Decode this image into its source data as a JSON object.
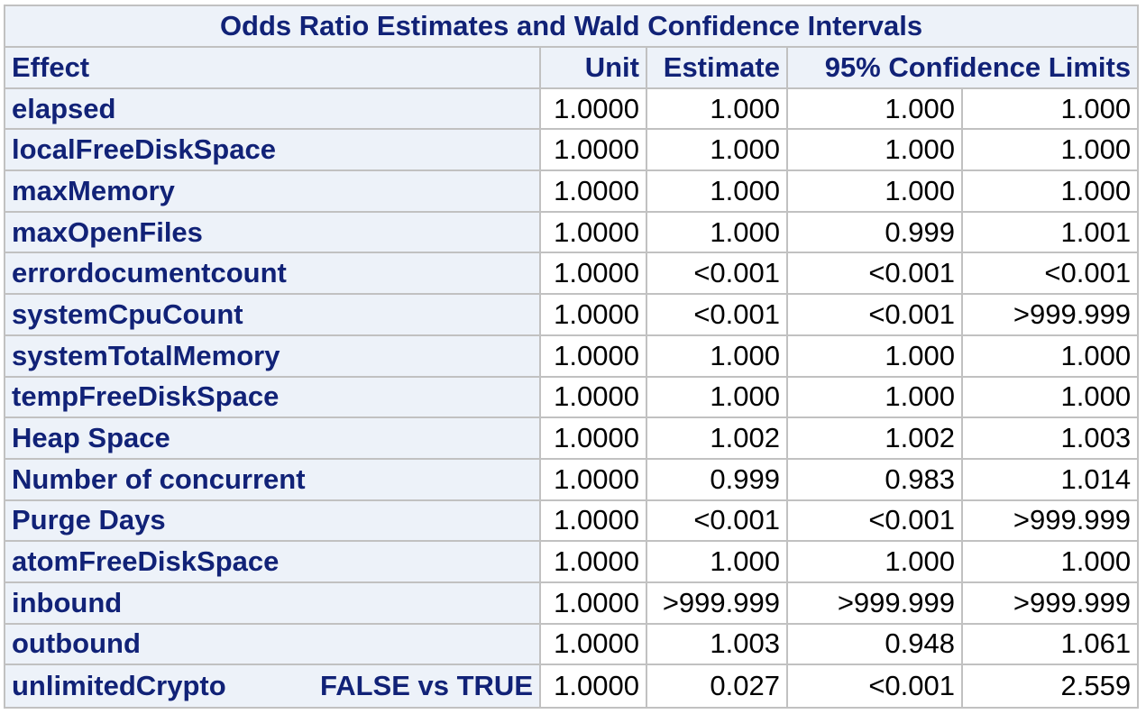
{
  "table": {
    "title": "Odds Ratio Estimates and Wald Confidence Intervals",
    "headers": {
      "effect": "Effect",
      "unit": "Unit",
      "estimate": "Estimate",
      "ci": "95% Confidence Limits"
    },
    "rows": [
      {
        "effect": "elapsed",
        "comparison": "",
        "unit": "1.0000",
        "estimate": "1.000",
        "lower": "1.000",
        "upper": "1.000"
      },
      {
        "effect": "localFreeDiskSpace",
        "comparison": "",
        "unit": "1.0000",
        "estimate": "1.000",
        "lower": "1.000",
        "upper": "1.000"
      },
      {
        "effect": "maxMemory",
        "comparison": "",
        "unit": "1.0000",
        "estimate": "1.000",
        "lower": "1.000",
        "upper": "1.000"
      },
      {
        "effect": "maxOpenFiles",
        "comparison": "",
        "unit": "1.0000",
        "estimate": "1.000",
        "lower": "0.999",
        "upper": "1.001"
      },
      {
        "effect": "errordocumentcount",
        "comparison": "",
        "unit": "1.0000",
        "estimate": "<0.001",
        "lower": "<0.001",
        "upper": "<0.001"
      },
      {
        "effect": "systemCpuCount",
        "comparison": "",
        "unit": "1.0000",
        "estimate": "<0.001",
        "lower": "<0.001",
        "upper": ">999.999"
      },
      {
        "effect": "systemTotalMemory",
        "comparison": "",
        "unit": "1.0000",
        "estimate": "1.000",
        "lower": "1.000",
        "upper": "1.000"
      },
      {
        "effect": "tempFreeDiskSpace",
        "comparison": "",
        "unit": "1.0000",
        "estimate": "1.000",
        "lower": "1.000",
        "upper": "1.000"
      },
      {
        "effect": "Heap Space",
        "comparison": "",
        "unit": "1.0000",
        "estimate": "1.002",
        "lower": "1.002",
        "upper": "1.003"
      },
      {
        "effect": "Number of concurrent",
        "comparison": "",
        "unit": "1.0000",
        "estimate": "0.999",
        "lower": "0.983",
        "upper": "1.014"
      },
      {
        "effect": "Purge Days",
        "comparison": "",
        "unit": "1.0000",
        "estimate": "<0.001",
        "lower": "<0.001",
        "upper": ">999.999"
      },
      {
        "effect": "atomFreeDiskSpace",
        "comparison": "",
        "unit": "1.0000",
        "estimate": "1.000",
        "lower": "1.000",
        "upper": "1.000"
      },
      {
        "effect": "inbound",
        "comparison": "",
        "unit": "1.0000",
        "estimate": ">999.999",
        "lower": ">999.999",
        "upper": ">999.999"
      },
      {
        "effect": "outbound",
        "comparison": "",
        "unit": "1.0000",
        "estimate": "1.003",
        "lower": "0.948",
        "upper": "1.061"
      },
      {
        "effect": "unlimitedCrypto",
        "comparison": "FALSE vs TRUE",
        "unit": "1.0000",
        "estimate": "0.027",
        "lower": "<0.001",
        "upper": "2.559"
      }
    ]
  }
}
